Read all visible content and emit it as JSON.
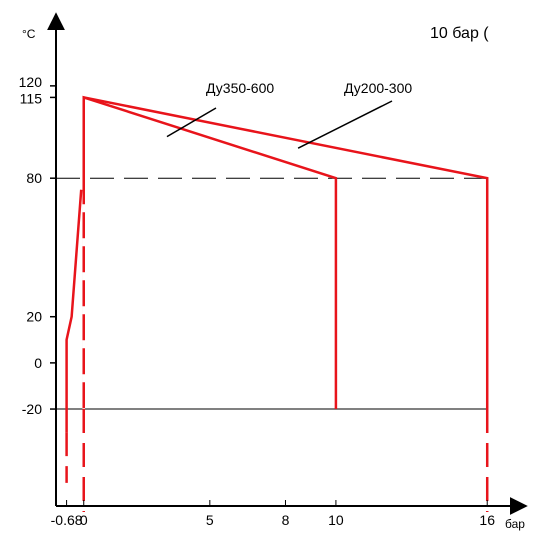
{
  "chart_data": {
    "type": "line",
    "title": "10 бар (",
    "xlabel": "бар",
    "ylabel": "°C",
    "x_ticks": [
      "-0.68",
      "0",
      "5",
      "8",
      "10",
      "16"
    ],
    "y_ticks": [
      "120",
      "115",
      "80",
      "20",
      "0",
      "-20"
    ],
    "xlim": [
      -1.1,
      17.3
    ],
    "ylim": [
      -62,
      152
    ],
    "grid": false,
    "colors": {
      "series": "#e8141b",
      "axis": "#000000",
      "reference": "#000000"
    },
    "series": [
      {
        "name": "Ду350-600",
        "points": [
          [
            0,
            -20
          ],
          [
            0,
            115
          ],
          [
            10,
            80
          ],
          [
            10,
            -20
          ]
        ],
        "label_pointer": [
          3.3,
          98
        ]
      },
      {
        "name": "Ду200-300",
        "points": [
          [
            0,
            -20
          ],
          [
            0,
            115
          ],
          [
            16,
            80
          ],
          [
            16,
            -20
          ]
        ],
        "label_pointer": [
          8.5,
          93
        ]
      }
    ],
    "left_boundary": {
      "points": [
        [
          -0.68,
          -30
        ],
        [
          -0.68,
          10
        ],
        [
          -0.48,
          20
        ],
        [
          -0.1,
          75
        ]
      ],
      "dashed_extension": [
        [
          -0.68,
          -30
        ],
        [
          -0.68,
          -52
        ]
      ]
    },
    "reference_lines": [
      {
        "y": 80,
        "style": "dashed"
      },
      {
        "y": -20,
        "style": "solid"
      }
    ]
  }
}
